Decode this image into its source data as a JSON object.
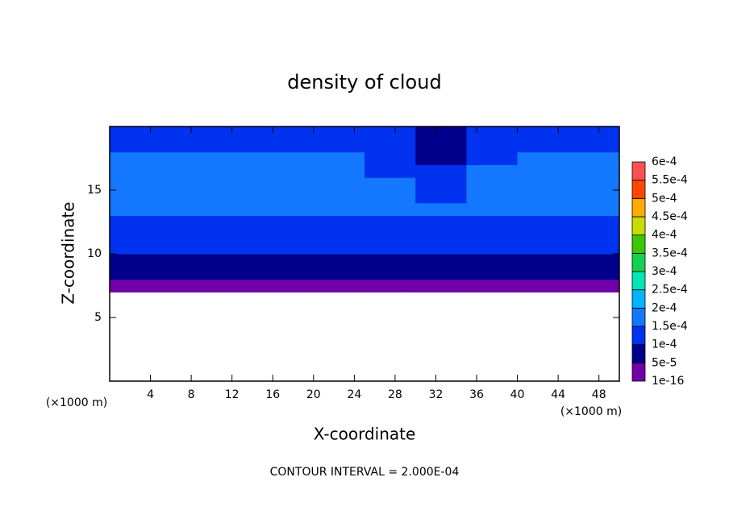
{
  "chart_data": {
    "type": "contour",
    "title": "density of cloud",
    "xlabel": "X-coordinate",
    "ylabel": "Z-coordinate",
    "x_unit": "(×1000 m)",
    "annotation": "CONTOUR INTERVAL = 2.000E-04",
    "xlim": [
      0,
      50
    ],
    "ylim": [
      0,
      20
    ],
    "xticks": [
      4,
      8,
      12,
      16,
      20,
      24,
      28,
      32,
      36,
      40,
      44,
      48
    ],
    "yticks": [
      5,
      10,
      15
    ],
    "x": [
      2.5,
      7.5,
      12.5,
      17.5,
      22.5,
      27.5,
      32.5,
      37.5,
      42.5,
      47.5
    ],
    "y": [
      7.5,
      8.5,
      9.5,
      10.5,
      11.5,
      12.5,
      13.5,
      14.5,
      15.5,
      16.5,
      17.5,
      18.5,
      19.5
    ],
    "z": [
      [
        3e-05,
        3e-05,
        3e-05,
        3e-05,
        3e-05,
        3e-05,
        3e-05,
        3e-05,
        3e-05,
        3e-05
      ],
      [
        7e-05,
        7e-05,
        7e-05,
        7e-05,
        7e-05,
        7e-05,
        7e-05,
        7e-05,
        7e-05,
        7e-05
      ],
      [
        9e-05,
        8e-05,
        9e-05,
        9e-05,
        9e-05,
        9e-05,
        8e-05,
        9e-05,
        9e-05,
        9e-05
      ],
      [
        0.00011,
        0.00011,
        0.00011,
        0.00011,
        0.00011,
        0.00011,
        0.00011,
        0.00011,
        0.00011,
        0.00011
      ],
      [
        0.00012,
        0.00012,
        0.00012,
        0.00012,
        0.00012,
        0.00012,
        0.00012,
        0.00012,
        0.00012,
        0.00012
      ],
      [
        0.00014,
        0.00014,
        0.00014,
        0.00014,
        0.00014,
        0.00014,
        0.00014,
        0.00014,
        0.00014,
        0.00014
      ],
      [
        0.00016,
        0.00016,
        0.00016,
        0.00016,
        0.00016,
        0.00016,
        0.00016,
        0.00016,
        0.00016,
        0.00016
      ],
      [
        0.00017,
        0.00017,
        0.00017,
        0.00017,
        0.00017,
        0.00017,
        0.00013,
        0.00017,
        0.00017,
        0.00017
      ],
      [
        0.00017,
        0.00017,
        0.00017,
        0.00017,
        0.00017,
        0.00016,
        0.00012,
        0.00016,
        0.00017,
        0.00017
      ],
      [
        0.00018,
        0.00018,
        0.00018,
        0.00018,
        0.00017,
        0.00014,
        0.00011,
        0.00015,
        0.00018,
        0.00018
      ],
      [
        0.00017,
        0.00017,
        0.00017,
        0.00016,
        0.00016,
        0.00012,
        9e-05,
        0.00014,
        0.00017,
        0.00017
      ],
      [
        0.00014,
        0.00014,
        0.00014,
        0.00013,
        0.00013,
        0.00011,
        8e-05,
        0.00012,
        0.00014,
        0.00014
      ],
      [
        0.00011,
        0.00011,
        0.00011,
        0.00011,
        0.00011,
        0.0001,
        7e-05,
        0.00011,
        0.00011,
        0.00011
      ]
    ],
    "colorbar": {
      "ticks": [
        {
          "value": 1e-16,
          "label": "1e-16"
        },
        {
          "value": 5e-05,
          "label": "5e-5"
        },
        {
          "value": 0.0001,
          "label": "1e-4"
        },
        {
          "value": 0.00015,
          "label": "1.5e-4"
        },
        {
          "value": 0.0002,
          "label": "2e-4"
        },
        {
          "value": 0.00025,
          "label": "2.5e-4"
        },
        {
          "value": 0.0003,
          "label": "3e-4"
        },
        {
          "value": 0.00035,
          "label": "3.5e-4"
        },
        {
          "value": 0.0004,
          "label": "4e-4"
        },
        {
          "value": 0.00045,
          "label": "4.5e-4"
        },
        {
          "value": 0.0005,
          "label": "5e-4"
        },
        {
          "value": 0.00055,
          "label": "5.5e-4"
        },
        {
          "value": 0.0006,
          "label": "6e-4"
        }
      ],
      "colors": [
        "#7200a8",
        "#00008c",
        "#0032f0",
        "#1478ff",
        "#00b4ff",
        "#00e6b4",
        "#14d250",
        "#3cc800",
        "#c8dc00",
        "#ffaa00",
        "#ff4600",
        "#ff5050"
      ]
    }
  }
}
